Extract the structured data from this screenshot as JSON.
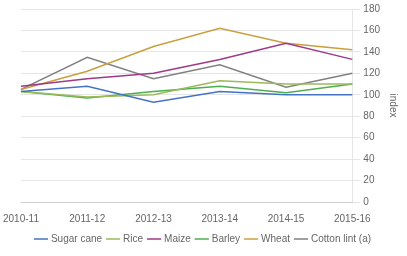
{
  "chart_data": {
    "type": "line",
    "categories": [
      "2010-11",
      "2011-12",
      "2012-13",
      "2013-14",
      "2014-15",
      "2015-16"
    ],
    "series": [
      {
        "name": "Sugar cane",
        "color": "#4472C4",
        "values": [
          103,
          108,
          93,
          103,
          100,
          100
        ]
      },
      {
        "name": "Rice",
        "color": "#9BBB59",
        "values": [
          103,
          98,
          100,
          113,
          110,
          110
        ]
      },
      {
        "name": "Maize",
        "color": "#9E3A87",
        "values": [
          108,
          115,
          120,
          133,
          148,
          133
        ]
      },
      {
        "name": "Barley",
        "color": "#4CAF50",
        "values": [
          103,
          97,
          103,
          108,
          102,
          110
        ]
      },
      {
        "name": "Wheat",
        "color": "#C8A040",
        "values": [
          105,
          122,
          145,
          162,
          148,
          142
        ]
      },
      {
        "name": "Cotton lint (a)",
        "color": "#808080",
        "values": [
          105,
          135,
          115,
          128,
          107,
          120
        ]
      }
    ],
    "ylabel": "index",
    "ylim": [
      0,
      180
    ],
    "yticks": [
      0,
      20,
      40,
      60,
      80,
      100,
      120,
      140,
      160,
      180
    ],
    "grid": true,
    "legend": "bottom"
  }
}
